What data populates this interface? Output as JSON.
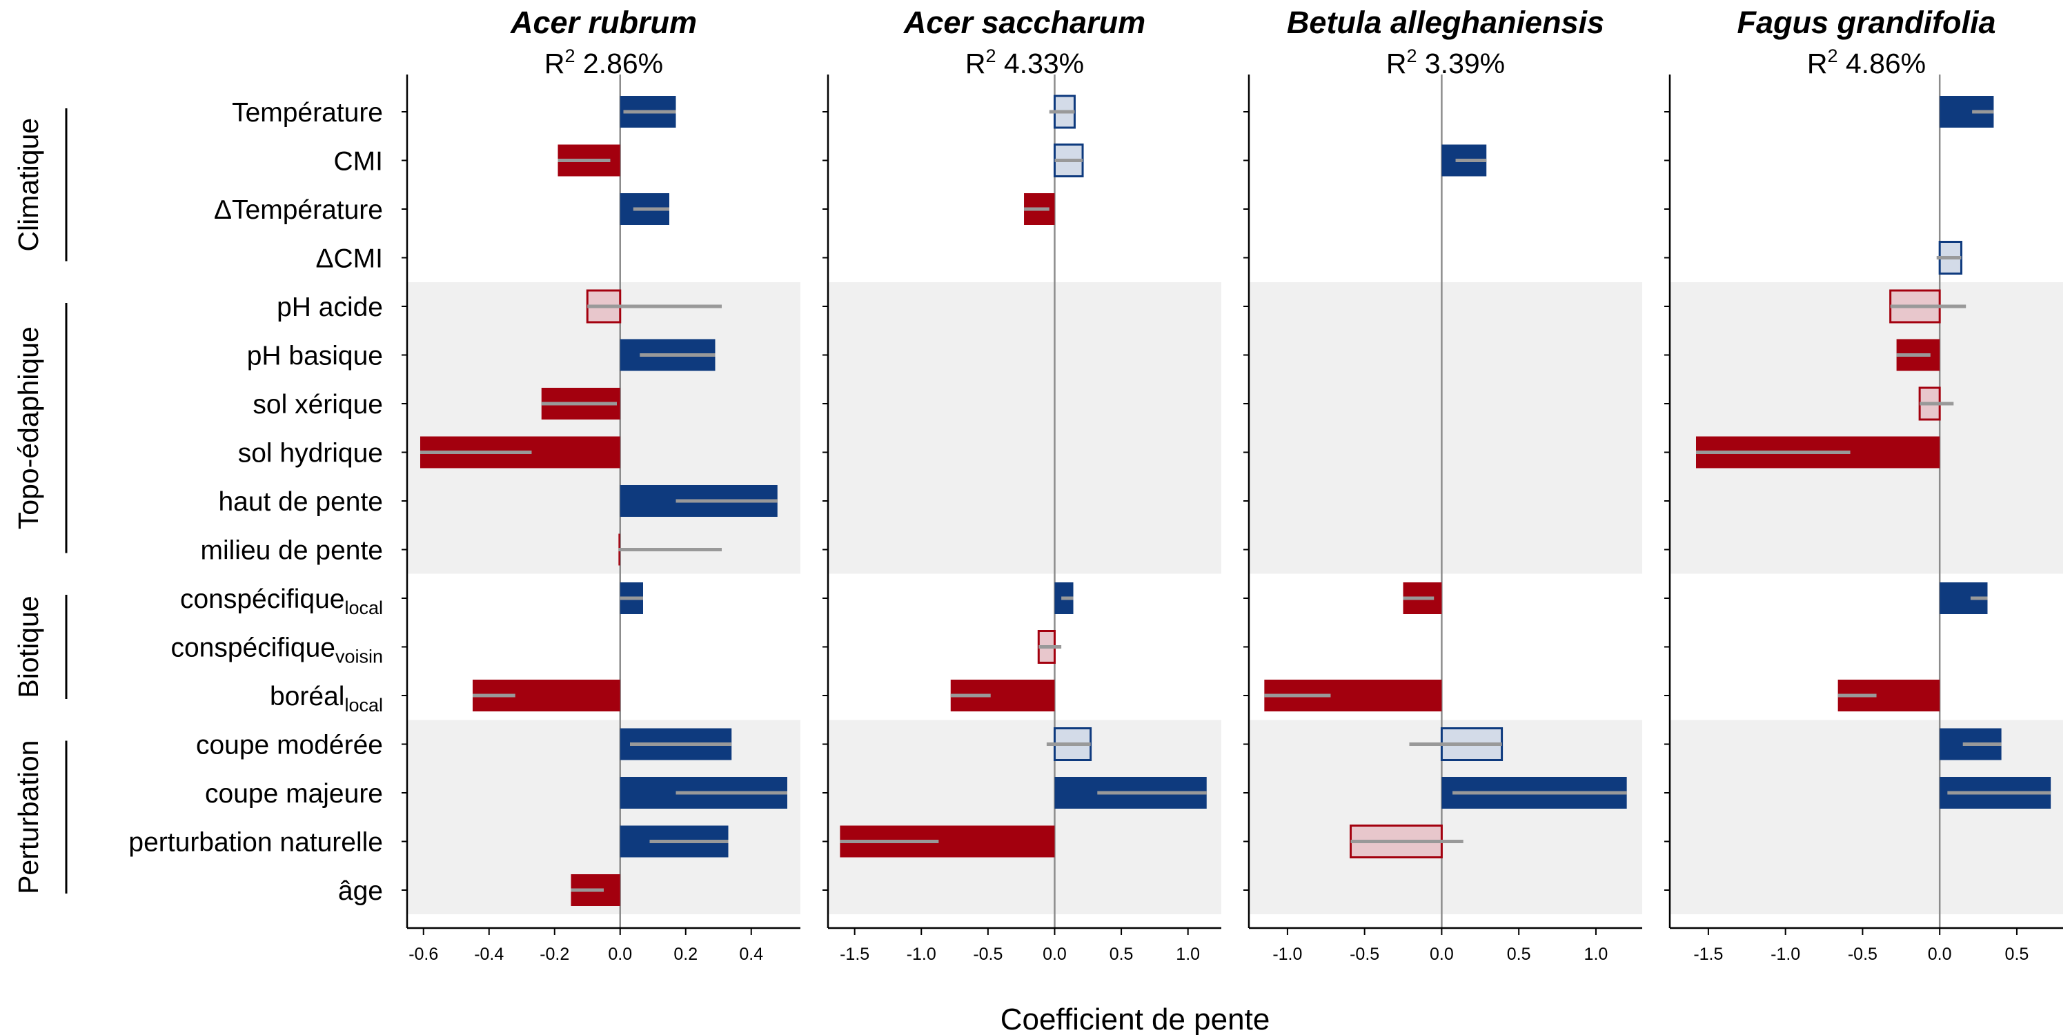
{
  "chart_data": {
    "type": "bar",
    "xlabel": "Coefficient de pente",
    "colors": {
      "positive": "#0e3a7e",
      "negative": "#a3000e",
      "positive_light_fill": "#d3dbe8",
      "negative_light_fill": "#e8c7cc",
      "ci_line": "#999999",
      "band": "#f0f0f0",
      "zero_line": "#8c8c8c"
    },
    "r2_prefix": "R",
    "r2_sup": "2",
    "rows": [
      {
        "key": "temperature",
        "label": "Température"
      },
      {
        "key": "cmi",
        "label": "CMI"
      },
      {
        "key": "dtemperature",
        "label": "ΔTempérature"
      },
      {
        "key": "dcmi",
        "label": "ΔCMI"
      },
      {
        "key": "ph_acide",
        "label": "pH acide"
      },
      {
        "key": "ph_basique",
        "label": "pH basique"
      },
      {
        "key": "sol_xerique",
        "label": "sol xérique"
      },
      {
        "key": "sol_hydrique",
        "label": "sol hydrique"
      },
      {
        "key": "haut_pente",
        "label": "haut de pente"
      },
      {
        "key": "milieu_pente",
        "label": "milieu de pente"
      },
      {
        "key": "consp_local",
        "label": "conspécifique",
        "sub": "local"
      },
      {
        "key": "consp_voisin",
        "label": "conspécifique",
        "sub": "voisin"
      },
      {
        "key": "boreal_local",
        "label": "boréal",
        "sub": "local"
      },
      {
        "key": "coupe_moderee",
        "label": "coupe modérée"
      },
      {
        "key": "coupe_majeure",
        "label": "coupe majeure"
      },
      {
        "key": "pert_naturelle",
        "label": "perturbation naturelle"
      },
      {
        "key": "age",
        "label": "âge"
      }
    ],
    "groups": [
      {
        "label": "Climatique",
        "start": 0,
        "end": 3,
        "shaded": false
      },
      {
        "label": "Topo-édaphique",
        "start": 4,
        "end": 9,
        "shaded": true
      },
      {
        "label": "Biotique",
        "start": 10,
        "end": 12,
        "shaded": false
      },
      {
        "label": "Perturbation",
        "start": 13,
        "end": 16,
        "shaded": true
      }
    ],
    "panels": [
      {
        "title": "Acer rubrum",
        "r2": "2.86%",
        "xlim": [
          -0.65,
          0.55
        ],
        "ticks": [
          -0.6,
          -0.4,
          -0.2,
          0.0,
          0.2,
          0.4
        ],
        "tick_labels": [
          "-0.6",
          "-0.4",
          "-0.2",
          "0.0",
          "0.2",
          "0.4"
        ],
        "bars": [
          {
            "row": 0,
            "value": 0.17,
            "ci": [
              0.01,
              0.17
            ],
            "sig": true
          },
          {
            "row": 1,
            "value": -0.19,
            "ci": [
              -0.19,
              -0.03
            ],
            "sig": true
          },
          {
            "row": 2,
            "value": 0.15,
            "ci": [
              0.04,
              0.15
            ],
            "sig": true
          },
          {
            "row": 4,
            "value": -0.1,
            "ci": [
              -0.1,
              0.31
            ],
            "sig": false
          },
          {
            "row": 5,
            "value": 0.29,
            "ci": [
              0.06,
              0.29
            ],
            "sig": true
          },
          {
            "row": 6,
            "value": -0.24,
            "ci": [
              -0.24,
              -0.01
            ],
            "sig": true
          },
          {
            "row": 7,
            "value": -0.61,
            "ci": [
              -0.61,
              -0.27
            ],
            "sig": true
          },
          {
            "row": 8,
            "value": 0.48,
            "ci": [
              0.17,
              0.48
            ],
            "sig": true
          },
          {
            "row": 9,
            "value": -0.005,
            "ci": [
              -0.005,
              0.31
            ],
            "sig": true
          },
          {
            "row": 10,
            "value": 0.07,
            "ci": [
              0.0,
              0.07
            ],
            "sig": true
          },
          {
            "row": 12,
            "value": -0.45,
            "ci": [
              -0.45,
              -0.32
            ],
            "sig": true
          },
          {
            "row": 13,
            "value": 0.34,
            "ci": [
              0.03,
              0.34
            ],
            "sig": true
          },
          {
            "row": 14,
            "value": 0.51,
            "ci": [
              0.17,
              0.51
            ],
            "sig": true
          },
          {
            "row": 15,
            "value": 0.33,
            "ci": [
              0.09,
              0.33
            ],
            "sig": true
          },
          {
            "row": 16,
            "value": -0.15,
            "ci": [
              -0.15,
              -0.05
            ],
            "sig": true
          }
        ]
      },
      {
        "title": "Acer saccharum",
        "r2": "4.33%",
        "xlim": [
          -1.7,
          1.25
        ],
        "ticks": [
          -1.5,
          -1.0,
          -0.5,
          0.0,
          0.5,
          1.0
        ],
        "tick_labels": [
          "-1.5",
          "-1.0",
          "-0.5",
          "0.0",
          "0.5",
          "1.0"
        ],
        "bars": [
          {
            "row": 0,
            "value": 0.15,
            "ci": [
              -0.04,
              0.15
            ],
            "sig": false
          },
          {
            "row": 1,
            "value": 0.21,
            "ci": [
              0.0,
              0.21
            ],
            "sig": false
          },
          {
            "row": 2,
            "value": -0.23,
            "ci": [
              -0.23,
              -0.04
            ],
            "sig": true
          },
          {
            "row": 10,
            "value": 0.14,
            "ci": [
              0.05,
              0.14
            ],
            "sig": true
          },
          {
            "row": 11,
            "value": -0.12,
            "ci": [
              -0.12,
              0.05
            ],
            "sig": false
          },
          {
            "row": 12,
            "value": -0.78,
            "ci": [
              -0.78,
              -0.48
            ],
            "sig": true
          },
          {
            "row": 13,
            "value": 0.27,
            "ci": [
              -0.06,
              0.27
            ],
            "sig": false
          },
          {
            "row": 14,
            "value": 1.14,
            "ci": [
              0.32,
              1.14
            ],
            "sig": true
          },
          {
            "row": 15,
            "value": -1.61,
            "ci": [
              -1.61,
              -0.87
            ],
            "sig": true
          }
        ]
      },
      {
        "title": "Betula alleghaniensis",
        "r2": "3.39%",
        "xlim": [
          -1.25,
          1.3
        ],
        "ticks": [
          -1.0,
          -0.5,
          0.0,
          0.5,
          1.0
        ],
        "tick_labels": [
          "-1.0",
          "-0.5",
          "0.0",
          "0.5",
          "1.0"
        ],
        "bars": [
          {
            "row": 1,
            "value": 0.29,
            "ci": [
              0.09,
              0.29
            ],
            "sig": true
          },
          {
            "row": 10,
            "value": -0.25,
            "ci": [
              -0.25,
              -0.05
            ],
            "sig": true
          },
          {
            "row": 12,
            "value": -1.15,
            "ci": [
              -1.15,
              -0.72
            ],
            "sig": true
          },
          {
            "row": 13,
            "value": 0.39,
            "ci": [
              -0.21,
              0.39
            ],
            "sig": false
          },
          {
            "row": 14,
            "value": 1.2,
            "ci": [
              0.07,
              1.2
            ],
            "sig": true
          },
          {
            "row": 15,
            "value": -0.59,
            "ci": [
              -0.59,
              0.14
            ],
            "sig": false
          }
        ]
      },
      {
        "title": "Fagus grandifolia",
        "r2": "4.86%",
        "xlim": [
          -1.75,
          0.8
        ],
        "ticks": [
          -1.5,
          -1.0,
          -0.5,
          0.0,
          0.5
        ],
        "tick_labels": [
          "-1.5",
          "-1.0",
          "-0.5",
          "0.0",
          "0.5"
        ],
        "bars": [
          {
            "row": 0,
            "value": 0.35,
            "ci": [
              0.21,
              0.35
            ],
            "sig": true
          },
          {
            "row": 3,
            "value": 0.14,
            "ci": [
              -0.02,
              0.14
            ],
            "sig": false
          },
          {
            "row": 4,
            "value": -0.32,
            "ci": [
              -0.32,
              0.17
            ],
            "sig": false
          },
          {
            "row": 5,
            "value": -0.28,
            "ci": [
              -0.28,
              -0.06
            ],
            "sig": true
          },
          {
            "row": 6,
            "value": -0.13,
            "ci": [
              -0.13,
              0.09
            ],
            "sig": false
          },
          {
            "row": 7,
            "value": -1.58,
            "ci": [
              -1.58,
              -0.58
            ],
            "sig": true
          },
          {
            "row": 10,
            "value": 0.31,
            "ci": [
              0.2,
              0.31
            ],
            "sig": true
          },
          {
            "row": 12,
            "value": -0.66,
            "ci": [
              -0.66,
              -0.41
            ],
            "sig": true
          },
          {
            "row": 13,
            "value": 0.4,
            "ci": [
              0.15,
              0.4
            ],
            "sig": true
          },
          {
            "row": 14,
            "value": 0.72,
            "ci": [
              0.05,
              0.72
            ],
            "sig": true
          }
        ]
      }
    ]
  }
}
